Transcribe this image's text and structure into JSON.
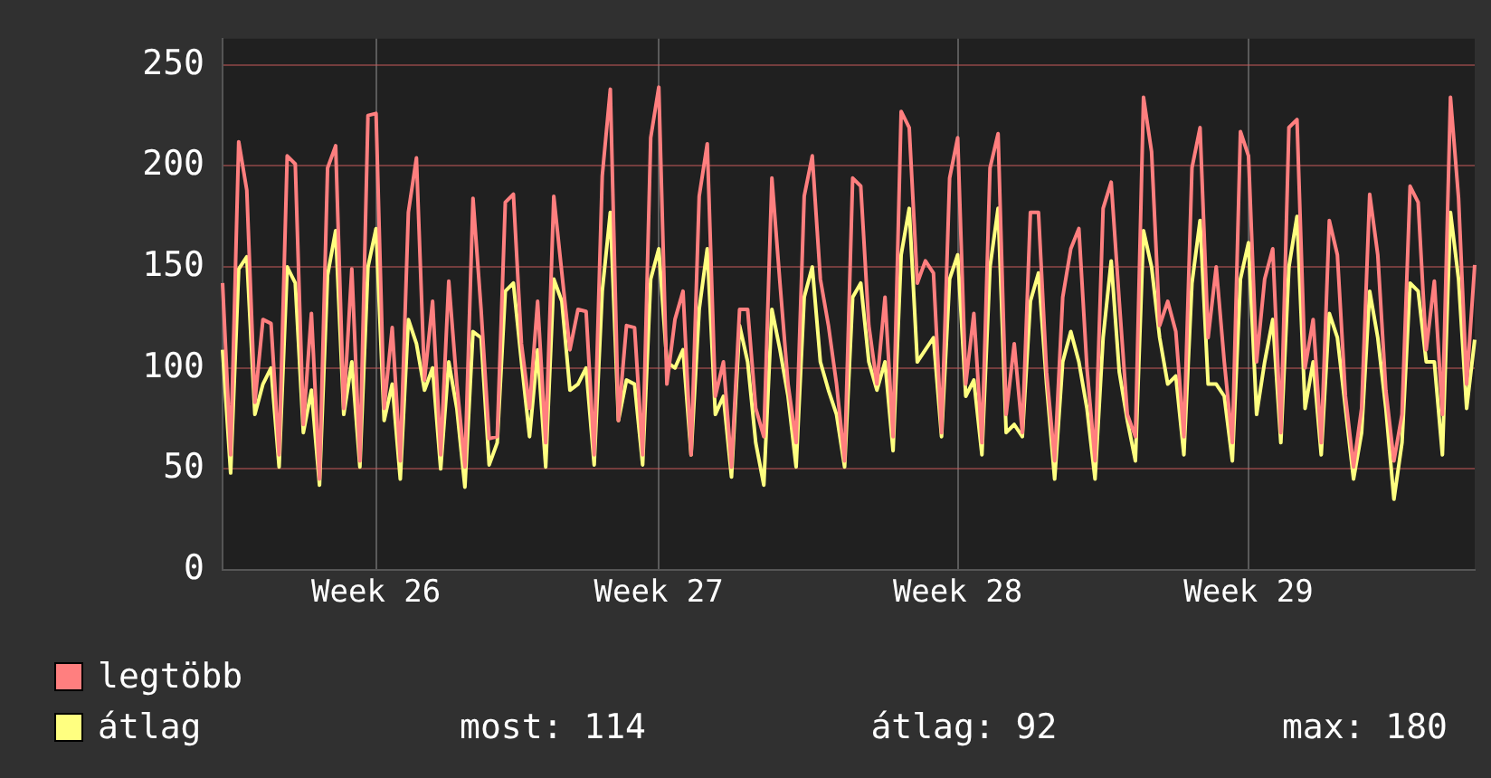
{
  "chart_data": {
    "type": "line",
    "categories": [
      null,
      null,
      null,
      null,
      null,
      null,
      null,
      null,
      null,
      null,
      null,
      null,
      null,
      null,
      null,
      null,
      null,
      null,
      null,
      "Week 26",
      null,
      null,
      null,
      null,
      null,
      null,
      null,
      null,
      null,
      null,
      null,
      null,
      null,
      null,
      null,
      null,
      null,
      null,
      null,
      null,
      null,
      null,
      null,
      null,
      null,
      null,
      null,
      null,
      null,
      null,
      null,
      null,
      null,
      null,
      "Week 27",
      null,
      null,
      null,
      null,
      null,
      null,
      null,
      null,
      null,
      null,
      null,
      null,
      null,
      null,
      null,
      null,
      null,
      null,
      null,
      null,
      null,
      null,
      null,
      null,
      null,
      null,
      null,
      null,
      null,
      null,
      null,
      null,
      null,
      null,
      null,
      null,
      "Week 28",
      null,
      null,
      null,
      null,
      null,
      null,
      null,
      null,
      null,
      null,
      null,
      null,
      null,
      null,
      null,
      null,
      null,
      null,
      null,
      null,
      null,
      null,
      null,
      null,
      null,
      null,
      null,
      null,
      null,
      null,
      null,
      null,
      null,
      null,
      null,
      "Week 29",
      null,
      null,
      null,
      null,
      null,
      null,
      null,
      null,
      null,
      null,
      null,
      null,
      null,
      null,
      null,
      null,
      null,
      null,
      null,
      null,
      null,
      null,
      null,
      null,
      null,
      null,
      null,
      null
    ],
    "series": [
      {
        "name": "legtöbb",
        "color": "#ff7f7f",
        "values": [
          142,
          57,
          212,
          188,
          83,
          124,
          122,
          57,
          205,
          201,
          72,
          127,
          45,
          199,
          210,
          80,
          149,
          54,
          225,
          226,
          80,
          120,
          54,
          177,
          204,
          94,
          133,
          57,
          143,
          92,
          51,
          184,
          129,
          65,
          66,
          182,
          186,
          112,
          80,
          133,
          63,
          185,
          147,
          109,
          129,
          128,
          57,
          195,
          238,
          74,
          121,
          120,
          57,
          214,
          239,
          92,
          124,
          138,
          57,
          185,
          211,
          86,
          103,
          51,
          129,
          129,
          80,
          66,
          194,
          142,
          92,
          63,
          185,
          205,
          144,
          121,
          92,
          54,
          194,
          190,
          121,
          92,
          135,
          66,
          227,
          219,
          142,
          153,
          147,
          68,
          194,
          214,
          92,
          127,
          63,
          199,
          216,
          77,
          112,
          68,
          177,
          177,
          98,
          54,
          135,
          159,
          169,
          100,
          54,
          179,
          192,
          133,
          77,
          66,
          234,
          207,
          121,
          133,
          118,
          66,
          199,
          219,
          115,
          150,
          103,
          63,
          217,
          205,
          103,
          144,
          159,
          68,
          219,
          223,
          100,
          124,
          63,
          173,
          156,
          86,
          51,
          80,
          186,
          156,
          89,
          54,
          77,
          190,
          182,
          109,
          143,
          77,
          234,
          184,
          92,
          151
        ]
      },
      {
        "name": "átlag",
        "color": "#ffff80",
        "values": [
          109,
          48,
          149,
          155,
          77,
          92,
          100,
          51,
          150,
          142,
          68,
          89,
          42,
          146,
          168,
          77,
          103,
          51,
          150,
          169,
          74,
          92,
          45,
          124,
          112,
          89,
          100,
          50,
          103,
          80,
          41,
          118,
          115,
          52,
          63,
          138,
          142,
          103,
          66,
          109,
          51,
          144,
          133,
          89,
          92,
          100,
          52,
          138,
          177,
          74,
          94,
          92,
          52,
          144,
          159,
          103,
          100,
          109,
          57,
          129,
          159,
          77,
          86,
          46,
          121,
          103,
          63,
          42,
          129,
          109,
          86,
          51,
          135,
          150,
          103,
          89,
          77,
          51,
          135,
          142,
          103,
          89,
          103,
          59,
          156,
          179,
          103,
          109,
          115,
          66,
          144,
          156,
          86,
          94,
          57,
          150,
          179,
          68,
          72,
          66,
          133,
          147,
          92,
          45,
          103,
          118,
          103,
          80,
          45,
          115,
          153,
          98,
          74,
          54,
          168,
          150,
          115,
          92,
          96,
          57,
          142,
          173,
          92,
          92,
          86,
          54,
          144,
          162,
          77,
          103,
          124,
          63,
          150,
          175,
          80,
          103,
          57,
          127,
          115,
          80,
          45,
          68,
          138,
          115,
          80,
          35,
          63,
          142,
          138,
          103,
          103,
          57,
          177,
          144,
          80,
          114
        ]
      }
    ],
    "ylim": [
      0,
      263
    ],
    "yticks": [
      0,
      50,
      100,
      150,
      200,
      250
    ],
    "grid": true,
    "legend": "bottom",
    "annotations": [
      "most: 114",
      "átlag: 92",
      "max: 180"
    ]
  }
}
